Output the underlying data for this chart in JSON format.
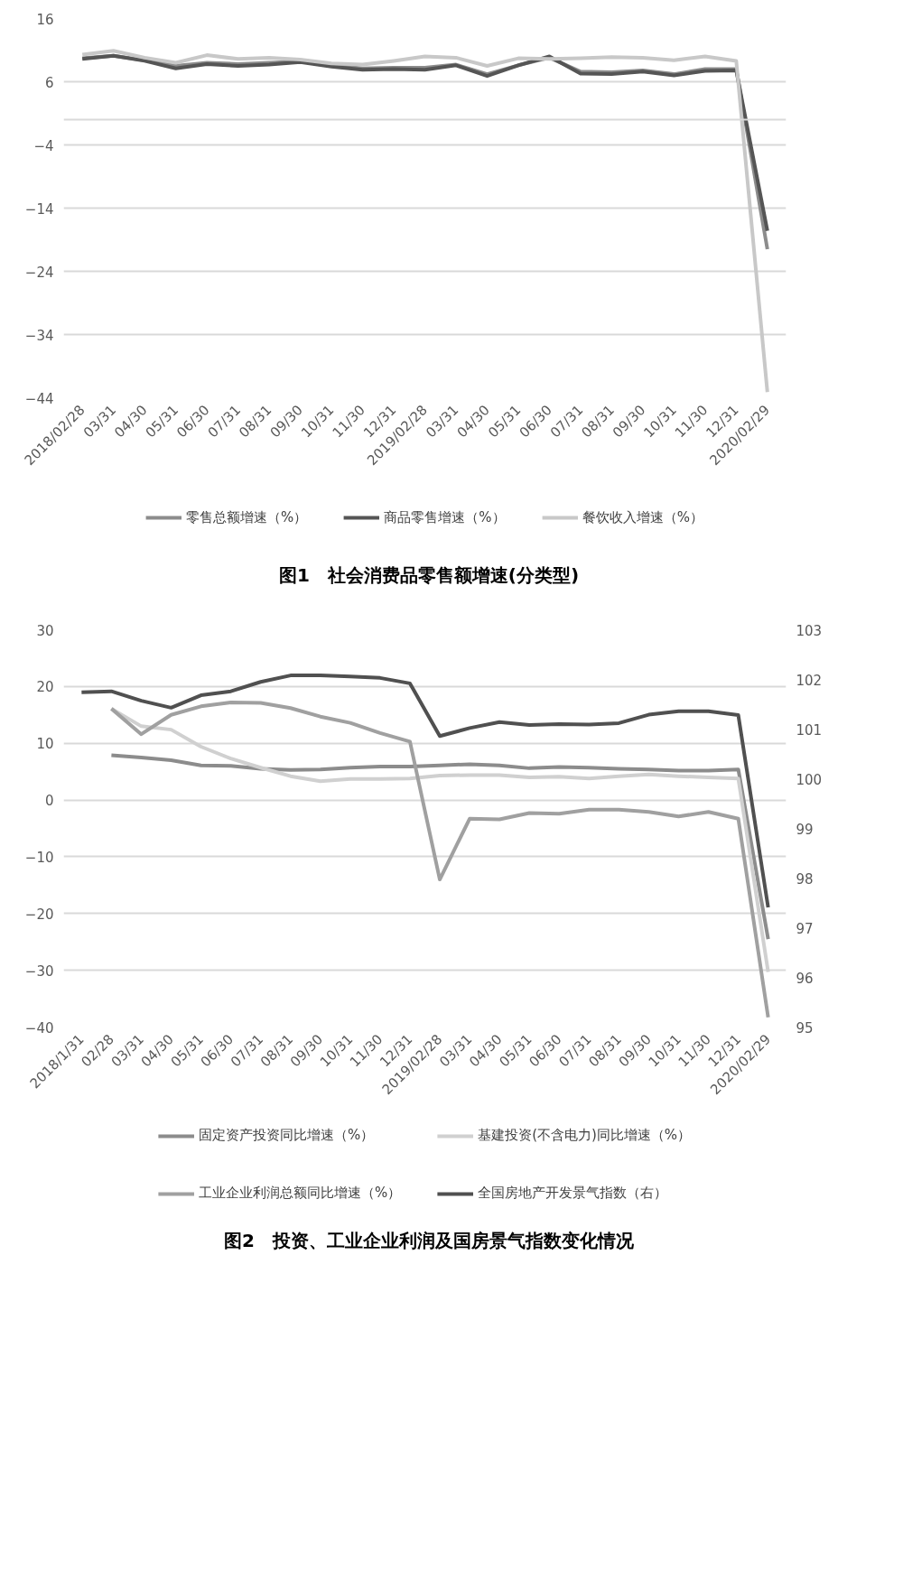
{
  "chart_data": [
    {
      "type": "line",
      "title": "图1　社会消费品零售额增速(分类型)",
      "categories": [
        "2018/02/28",
        "03/31",
        "04/30",
        "05/31",
        "06/30",
        "07/31",
        "08/31",
        "09/30",
        "10/31",
        "11/30",
        "12/31",
        "2019/02/28",
        "03/31",
        "04/30",
        "05/31",
        "06/30",
        "07/31",
        "08/31",
        "09/30",
        "10/31",
        "11/30",
        "12/31",
        "2020/02/29"
      ],
      "series": [
        {
          "name": "零售总额增速（%）",
          "color": "#8c8c8c",
          "values": [
            9.7,
            10.1,
            9.4,
            8.5,
            9.0,
            8.8,
            9.0,
            9.2,
            8.6,
            8.1,
            8.2,
            8.2,
            8.7,
            7.2,
            8.6,
            9.8,
            7.6,
            7.5,
            7.8,
            7.2,
            8.0,
            8.0,
            -20.5
          ]
        },
        {
          "name": "商品零售增速（%）",
          "color": "#555555",
          "values": [
            9.6,
            10.1,
            9.3,
            8.1,
            8.8,
            8.5,
            8.7,
            9.1,
            8.4,
            7.9,
            8.0,
            7.9,
            8.6,
            6.9,
            8.6,
            10.0,
            7.3,
            7.2,
            7.6,
            7.0,
            7.7,
            7.8,
            -17.6
          ]
        },
        {
          "name": "餐饮收入增速（%）",
          "color": "#c8c8c8",
          "values": [
            10.3,
            10.9,
            9.8,
            9.0,
            10.2,
            9.6,
            9.8,
            9.5,
            8.9,
            8.7,
            9.3,
            10.0,
            9.8,
            8.5,
            9.7,
            9.6,
            9.7,
            9.9,
            9.8,
            9.4,
            10.0,
            9.3,
            -43.1
          ]
        }
      ],
      "ylim": [
        -44,
        16
      ],
      "yticks": [
        16,
        6,
        -4,
        -14,
        -24,
        -34,
        -44
      ],
      "ref_lines": [
        {
          "axis": "y",
          "value": 0,
          "color": "#d9d9d9"
        }
      ],
      "grid": "y",
      "legend": "bottom",
      "marker": "none",
      "line_style": "solid"
    },
    {
      "type": "line",
      "title": "图2　投资、工业企业利润及国房景气指数变化情况",
      "categories": [
        "2018/1/31",
        "02/28",
        "03/31",
        "04/30",
        "05/31",
        "06/30",
        "07/31",
        "08/31",
        "09/30",
        "10/31",
        "11/30",
        "12/31",
        "2019/02/28",
        "03/31",
        "04/30",
        "05/31",
        "06/30",
        "07/31",
        "08/31",
        "09/30",
        "10/31",
        "11/30",
        "12/31",
        "2020/02/29"
      ],
      "series": [
        {
          "name": "固定资产投资同比增速（%）",
          "color": "#8c8c8c",
          "values": [
            null,
            7.9,
            7.5,
            7.0,
            6.1,
            6.0,
            5.5,
            5.3,
            5.4,
            5.7,
            5.9,
            5.9,
            6.1,
            6.3,
            6.1,
            5.6,
            5.8,
            5.7,
            5.5,
            5.4,
            5.2,
            5.2,
            5.4,
            -24.5
          ]
        },
        {
          "name": "基建投资(不含电力)同比增速（%）",
          "color": "#d0d0d0",
          "values": [
            null,
            16.1,
            13.0,
            12.4,
            9.4,
            7.3,
            5.7,
            4.2,
            3.3,
            3.7,
            3.7,
            3.8,
            4.3,
            4.4,
            4.4,
            4.0,
            4.1,
            3.8,
            4.2,
            4.5,
            4.2,
            4.0,
            3.8,
            -30.3
          ]
        },
        {
          "name": "工业企业利润总额同比增速（%）",
          "color": "#a0a0a0",
          "values": [
            null,
            16.1,
            11.6,
            15.0,
            16.5,
            17.2,
            17.1,
            16.2,
            14.7,
            13.6,
            11.8,
            10.3,
            -14.0,
            -3.3,
            -3.4,
            -2.3,
            -2.4,
            -1.7,
            -1.7,
            -2.1,
            -2.9,
            -2.1,
            -3.3,
            -38.3
          ]
        },
        {
          "name": "全国房地产开发景气指数（右）",
          "color": "#505050",
          "axis": "y2",
          "values": [
            101.74,
            101.76,
            101.57,
            101.43,
            101.68,
            101.76,
            101.95,
            102.08,
            102.08,
            102.06,
            102.03,
            101.92,
            100.86,
            101.02,
            101.14,
            101.08,
            101.1,
            101.09,
            101.12,
            101.29,
            101.36,
            101.36,
            101.28,
            97.41
          ]
        }
      ],
      "ylim": [
        -40,
        30
      ],
      "yticks": [
        30,
        20,
        10,
        0,
        -10,
        -20,
        -30,
        -40
      ],
      "y2lim": [
        95,
        103
      ],
      "y2ticks": [
        103,
        102,
        101,
        100,
        99,
        98,
        97,
        96,
        95
      ],
      "grid": "y",
      "legend": "bottom",
      "marker": "none",
      "line_style": "solid"
    }
  ]
}
